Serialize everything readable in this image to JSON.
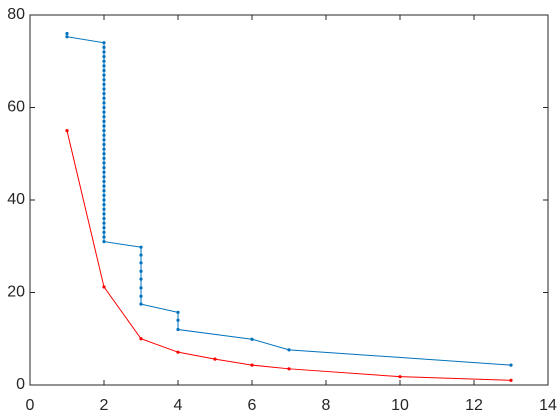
{
  "chart_data": {
    "type": "line",
    "xlim": [
      0,
      14
    ],
    "xticks": [
      0,
      2,
      4,
      6,
      8,
      10,
      12,
      14
    ],
    "ylim": [
      0,
      80
    ],
    "yticks": [
      0,
      20,
      40,
      60,
      80
    ],
    "series": [
      {
        "color": "#0072bd",
        "x": [
          1,
          1,
          2,
          2,
          2,
          2,
          2,
          2,
          2,
          2,
          2,
          2,
          2,
          2,
          2,
          2,
          2,
          2,
          2,
          2,
          2,
          2,
          2,
          2,
          2,
          2,
          2,
          2,
          2,
          2,
          2,
          2,
          2,
          2,
          2,
          2,
          2,
          2,
          2,
          2,
          2,
          2,
          2,
          2,
          2,
          2,
          3,
          3,
          3,
          3,
          3,
          3,
          3,
          3,
          4,
          4,
          4,
          6,
          7,
          13
        ],
        "values": [
          76,
          75.3,
          74,
          73,
          72,
          71,
          70,
          69,
          68,
          67,
          66,
          65,
          64,
          63,
          62,
          61,
          60,
          59,
          58,
          57,
          56,
          55,
          54,
          53,
          52,
          51,
          50,
          49,
          48,
          47,
          46,
          45,
          44,
          43,
          42,
          41,
          40,
          39,
          38,
          37,
          36,
          35,
          34,
          33,
          32,
          31,
          29.8,
          28.1,
          26.4,
          24.6,
          22.9,
          21.0,
          19.2,
          17.5,
          15.7,
          14,
          12,
          9.9,
          7.6,
          4.3
        ]
      },
      {
        "color": "#ff0000",
        "x": [
          1,
          2,
          3,
          4,
          5,
          6,
          7,
          10,
          13
        ],
        "values": [
          55,
          21.2,
          10,
          7.1,
          5.6,
          4.3,
          3.5,
          1.8,
          1
        ]
      }
    ]
  }
}
